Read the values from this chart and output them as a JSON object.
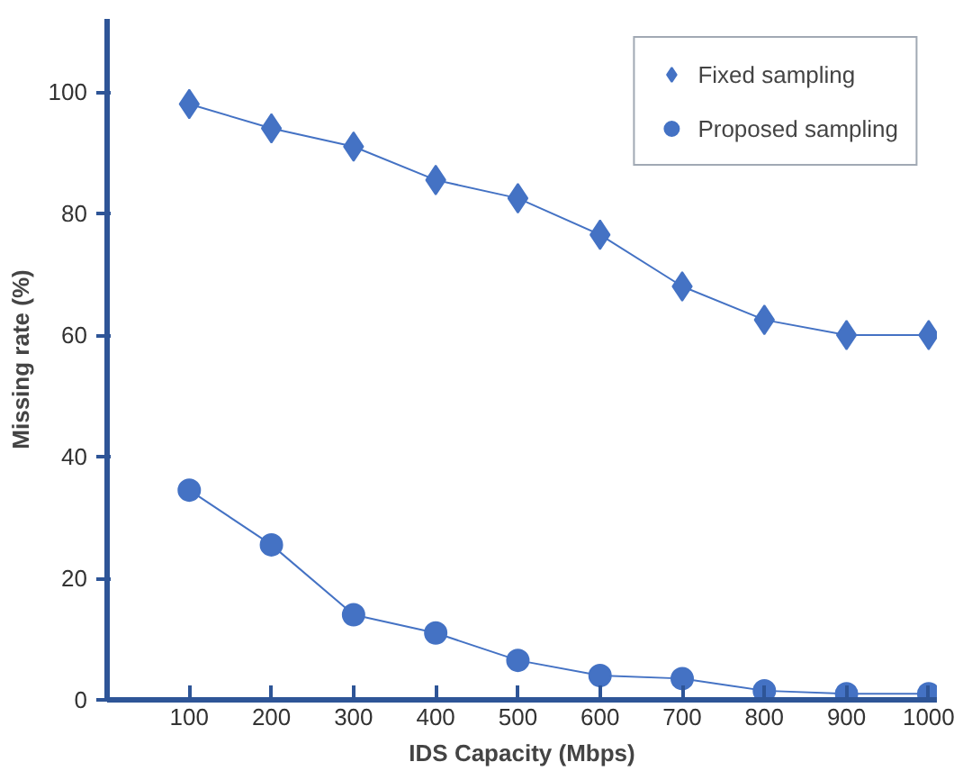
{
  "chart_data": {
    "type": "line",
    "xlabel": "IDS Capacity (Mbps)",
    "ylabel": "Missing rate (%)",
    "x": [
      100,
      200,
      300,
      400,
      500,
      600,
      700,
      800,
      900,
      1000
    ],
    "series": [
      {
        "name": "Fixed sampling",
        "color": "#4472c4",
        "marker": "diamond",
        "values": [
          98,
          94,
          91,
          85.5,
          82.5,
          76.5,
          68,
          62.5,
          60,
          60
        ]
      },
      {
        "name": "Proposed sampling",
        "color": "#4472c4",
        "marker": "circle",
        "values": [
          34.5,
          25.5,
          14,
          11,
          6.5,
          4,
          3.5,
          1.5,
          1,
          1
        ]
      }
    ],
    "xlim": [
      0,
      1010
    ],
    "ylim": [
      0,
      112
    ],
    "xticks": [
      100,
      200,
      300,
      400,
      500,
      600,
      700,
      800,
      900,
      1000
    ],
    "yticks": [
      0,
      20,
      40,
      60,
      80,
      100
    ],
    "grid": false,
    "legend": "top right"
  }
}
